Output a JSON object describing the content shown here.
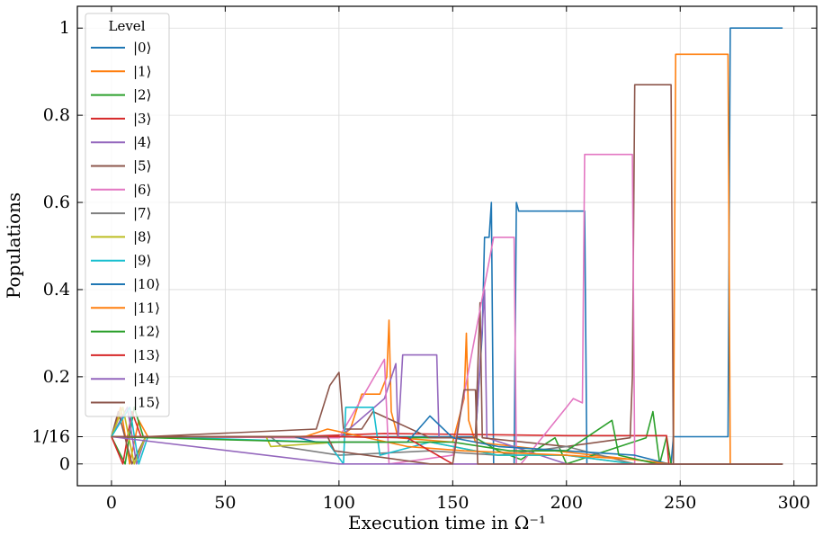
{
  "chart_data": {
    "type": "line",
    "xlabel": "Execution time in Ω⁻¹",
    "ylabel": "Populations",
    "xlim": [
      -15,
      310
    ],
    "ylim": [
      -0.05,
      1.05
    ],
    "x_ticks": [
      0,
      50,
      100,
      150,
      200,
      250,
      300
    ],
    "x_tick_labels": [
      "0",
      "50",
      "100",
      "150",
      "200",
      "250",
      "300"
    ],
    "y_ticks": [
      0,
      0.0625,
      0.2,
      0.4,
      0.6,
      0.8,
      1
    ],
    "y_tick_labels": [
      "0",
      "1/16",
      "0.2",
      "0.4",
      "0.6",
      "0.8",
      "1"
    ],
    "grid": true,
    "legend": {
      "title": "Level",
      "placement": "top-left"
    },
    "series": [
      {
        "name": "|0⟩",
        "color": "#1f77b4",
        "points": [
          [
            0,
            0.0625
          ],
          [
            160,
            0.0625
          ],
          [
            163,
            0.3
          ],
          [
            164,
            0.52
          ],
          [
            166,
            0.52
          ],
          [
            167,
            0.6
          ],
          [
            168,
            0.0
          ],
          [
            177,
            0.0
          ],
          [
            178,
            0.6
          ],
          [
            179,
            0.58
          ],
          [
            208,
            0.58
          ],
          [
            209,
            0.0
          ],
          [
            246,
            0.0
          ],
          [
            247,
            0.0625
          ],
          [
            271,
            0.0625
          ],
          [
            272,
            1.0
          ],
          [
            295,
            1.0
          ]
        ]
      },
      {
        "name": "|1⟩",
        "color": "#ff7f0e",
        "points": [
          [
            0,
            0.0625
          ],
          [
            4,
            0.13
          ],
          [
            8,
            0.0
          ],
          [
            12,
            0.1
          ],
          [
            16,
            0.0625
          ],
          [
            100,
            0.06
          ],
          [
            105,
            0.08
          ],
          [
            110,
            0.16
          ],
          [
            118,
            0.16
          ],
          [
            121,
            0.2
          ],
          [
            122,
            0.33
          ],
          [
            123,
            0.12
          ],
          [
            126,
            0.06
          ],
          [
            150,
            0.05
          ],
          [
            155,
            0.15
          ],
          [
            156,
            0.3
          ],
          [
            157,
            0.1
          ],
          [
            160,
            0.05
          ],
          [
            247,
            0.0
          ],
          [
            248,
            0.94
          ],
          [
            271,
            0.94
          ],
          [
            272,
            0.0
          ],
          [
            295,
            0.0
          ]
        ]
      },
      {
        "name": "|2⟩",
        "color": "#2ca02c",
        "points": [
          [
            0,
            0.0625
          ],
          [
            6,
            0.0
          ],
          [
            10,
            0.13
          ],
          [
            14,
            0.0625
          ],
          [
            100,
            0.0625
          ],
          [
            140,
            0.06
          ],
          [
            160,
            0.06
          ],
          [
            170,
            0.03
          ],
          [
            180,
            0.01
          ],
          [
            195,
            0.06
          ],
          [
            200,
            0.0
          ],
          [
            235,
            0.06
          ],
          [
            238,
            0.12
          ],
          [
            241,
            0.0
          ],
          [
            244,
            0.0625
          ],
          [
            246,
            0.0
          ],
          [
            295,
            0.0
          ]
        ]
      },
      {
        "name": "|3⟩",
        "color": "#d62728",
        "points": [
          [
            0,
            0.0625
          ],
          [
            5,
            0.0
          ],
          [
            9,
            0.12
          ],
          [
            13,
            0.0625
          ],
          [
            80,
            0.0625
          ],
          [
            120,
            0.07
          ],
          [
            200,
            0.065
          ],
          [
            230,
            0.065
          ],
          [
            244,
            0.065
          ],
          [
            245,
            0.0
          ],
          [
            295,
            0.0
          ]
        ]
      },
      {
        "name": "|4⟩",
        "color": "#9467bd",
        "points": [
          [
            0,
            0.0625
          ],
          [
            7,
            0.13
          ],
          [
            11,
            0.0
          ],
          [
            15,
            0.0625
          ],
          [
            100,
            0.06
          ],
          [
            120,
            0.15
          ],
          [
            125,
            0.23
          ],
          [
            126,
            0.06
          ],
          [
            128,
            0.25
          ],
          [
            143,
            0.25
          ],
          [
            144,
            0.06
          ],
          [
            160,
            0.06
          ],
          [
            164,
            0.4
          ],
          [
            165,
            0.06
          ],
          [
            200,
            0.0
          ],
          [
            295,
            0.0
          ]
        ]
      },
      {
        "name": "|5⟩",
        "color": "#8c564b",
        "points": [
          [
            0,
            0.0625
          ],
          [
            3,
            0.12
          ],
          [
            9,
            0.0
          ],
          [
            15,
            0.0625
          ],
          [
            90,
            0.08
          ],
          [
            96,
            0.18
          ],
          [
            100,
            0.21
          ],
          [
            102,
            0.08
          ],
          [
            110,
            0.08
          ],
          [
            115,
            0.12
          ],
          [
            140,
            0.06
          ],
          [
            160,
            0.06
          ],
          [
            162,
            0.37
          ],
          [
            163,
            0.06
          ],
          [
            200,
            0.04
          ],
          [
            228,
            0.06
          ],
          [
            229,
            0.2
          ],
          [
            230,
            0.87
          ],
          [
            246,
            0.87
          ],
          [
            247,
            0.0
          ],
          [
            295,
            0.0
          ]
        ]
      },
      {
        "name": "|6⟩",
        "color": "#e377c2",
        "points": [
          [
            0,
            0.0625
          ],
          [
            100,
            0.06
          ],
          [
            120,
            0.24
          ],
          [
            122,
            0.0
          ],
          [
            150,
            0.02
          ],
          [
            168,
            0.52
          ],
          [
            177,
            0.52
          ],
          [
            178,
            0.0
          ],
          [
            180,
            0.0
          ],
          [
            200,
            0.13
          ],
          [
            203,
            0.15
          ],
          [
            207,
            0.14
          ],
          [
            208,
            0.71
          ],
          [
            229,
            0.71
          ],
          [
            230,
            0.0
          ],
          [
            295,
            0.0
          ]
        ]
      },
      {
        "name": "|7⟩",
        "color": "#7f7f7f",
        "points": [
          [
            0,
            0.0625
          ],
          [
            70,
            0.0625
          ],
          [
            75,
            0.04
          ],
          [
            100,
            0.02
          ],
          [
            140,
            0.03
          ],
          [
            170,
            0.02
          ],
          [
            200,
            0.04
          ],
          [
            230,
            0.0
          ],
          [
            295,
            0.0
          ]
        ]
      },
      {
        "name": "|8⟩",
        "color": "#bcbd22",
        "points": [
          [
            0,
            0.0625
          ],
          [
            5,
            0.13
          ],
          [
            10,
            0.0
          ],
          [
            15,
            0.0625
          ],
          [
            68,
            0.0625
          ],
          [
            70,
            0.04
          ],
          [
            100,
            0.05
          ],
          [
            140,
            0.05
          ],
          [
            170,
            0.02
          ],
          [
            200,
            0.02
          ],
          [
            230,
            0.0
          ],
          [
            295,
            0.0
          ]
        ]
      },
      {
        "name": "|9⟩",
        "color": "#17becf",
        "points": [
          [
            0,
            0.0625
          ],
          [
            8,
            0.13
          ],
          [
            12,
            0.0
          ],
          [
            16,
            0.0625
          ],
          [
            95,
            0.05
          ],
          [
            102,
            0.0
          ],
          [
            103,
            0.13
          ],
          [
            115,
            0.13
          ],
          [
            118,
            0.02
          ],
          [
            140,
            0.05
          ],
          [
            170,
            0.02
          ],
          [
            200,
            0.02
          ],
          [
            230,
            0.0
          ],
          [
            295,
            0.0
          ]
        ]
      },
      {
        "name": "|10⟩",
        "color": "#1f77b4",
        "points": [
          [
            0,
            0.0625
          ],
          [
            80,
            0.0625
          ],
          [
            90,
            0.05
          ],
          [
            130,
            0.05
          ],
          [
            140,
            0.11
          ],
          [
            150,
            0.06
          ],
          [
            170,
            0.04
          ],
          [
            200,
            0.03
          ],
          [
            230,
            0.02
          ],
          [
            245,
            0.0
          ],
          [
            295,
            0.0
          ]
        ]
      },
      {
        "name": "|11⟩",
        "color": "#ff7f0e",
        "points": [
          [
            0,
            0.0625
          ],
          [
            85,
            0.0625
          ],
          [
            95,
            0.08
          ],
          [
            130,
            0.04
          ],
          [
            155,
            0.03
          ],
          [
            200,
            0.02
          ],
          [
            230,
            0.01
          ],
          [
            245,
            0.0
          ],
          [
            295,
            0.0
          ]
        ]
      },
      {
        "name": "|12⟩",
        "color": "#2ca02c",
        "points": [
          [
            0,
            0.0625
          ],
          [
            90,
            0.05
          ],
          [
            120,
            0.05
          ],
          [
            150,
            0.05
          ],
          [
            175,
            0.03
          ],
          [
            200,
            0.03
          ],
          [
            220,
            0.1
          ],
          [
            223,
            0.02
          ],
          [
            240,
            0.0
          ],
          [
            295,
            0.0
          ]
        ]
      },
      {
        "name": "|13⟩",
        "color": "#d62728",
        "points": [
          [
            0,
            0.0625
          ],
          [
            100,
            0.0625
          ],
          [
            130,
            0.06
          ],
          [
            150,
            0.0
          ],
          [
            200,
            0.0
          ],
          [
            295,
            0.0
          ]
        ]
      },
      {
        "name": "|14⟩",
        "color": "#9467bd",
        "points": [
          [
            0,
            0.0625
          ],
          [
            100,
            0.0
          ],
          [
            120,
            0.0
          ],
          [
            150,
            0.0
          ],
          [
            295,
            0.0
          ]
        ]
      },
      {
        "name": "|15⟩",
        "color": "#8c564b",
        "points": [
          [
            0,
            0.0625
          ],
          [
            95,
            0.0625
          ],
          [
            98,
            0.03
          ],
          [
            140,
            0.0
          ],
          [
            150,
            0.0
          ],
          [
            155,
            0.17
          ],
          [
            160,
            0.17
          ],
          [
            161,
            0.0
          ],
          [
            295,
            0.0
          ]
        ]
      }
    ]
  }
}
